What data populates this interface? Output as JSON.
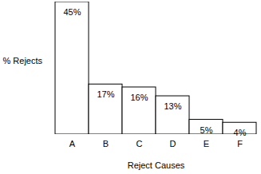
{
  "chart_data": {
    "type": "bar",
    "x_label": "Reject Causes",
    "y_label": "% Rejects",
    "categories": [
      "A",
      "B",
      "C",
      "D",
      "E",
      "F"
    ],
    "values": [
      45,
      17,
      16,
      13,
      5,
      4
    ],
    "value_labels": [
      "45%",
      "17%",
      "16%",
      "13%",
      "5%",
      "4%"
    ],
    "color": "#ffffff",
    "ylim": [
      0,
      45
    ],
    "grid": false,
    "data_labels": true,
    "tick_labels": "x"
  }
}
